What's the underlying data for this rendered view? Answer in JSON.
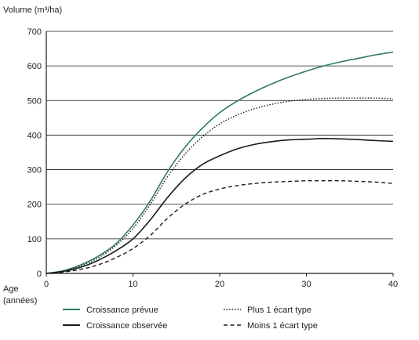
{
  "chart_data": {
    "type": "line",
    "ylabel": "Volume (m³/ha)",
    "xlabel": "Age",
    "xlabel_line2": "(années)",
    "xlim": [
      0,
      40
    ],
    "ylim": [
      0,
      700
    ],
    "xticks": [
      0,
      10,
      20,
      30,
      40
    ],
    "yticks": [
      0,
      100,
      200,
      300,
      400,
      500,
      600,
      700
    ],
    "grid": "horizontal",
    "legend_position": "bottom",
    "colors": {
      "teal": "#2e7a6c",
      "black": "#1a1a1a"
    },
    "series": [
      {
        "name": "Croissance prévue",
        "style": "solid",
        "color": "#2e7a6c",
        "x": [
          0,
          2,
          4,
          6,
          8,
          10,
          12,
          14,
          16,
          18,
          20,
          22,
          24,
          26,
          28,
          30,
          32,
          34,
          36,
          38,
          40
        ],
        "y": [
          0,
          8,
          25,
          50,
          85,
          140,
          210,
          295,
          365,
          420,
          465,
          498,
          525,
          548,
          568,
          585,
          600,
          612,
          622,
          632,
          640
        ]
      },
      {
        "name": "Croissance observée",
        "style": "solid",
        "color": "#1a1a1a",
        "x": [
          0,
          2,
          4,
          6,
          8,
          10,
          12,
          14,
          16,
          18,
          20,
          22,
          24,
          26,
          28,
          30,
          32,
          34,
          36,
          38,
          40
        ],
        "y": [
          0,
          6,
          18,
          38,
          65,
          100,
          155,
          220,
          275,
          315,
          340,
          360,
          373,
          381,
          386,
          388,
          390,
          389,
          387,
          384,
          382
        ]
      },
      {
        "name": "Plus 1 écart type",
        "style": "dotted",
        "color": "#1a1a1a",
        "x": [
          0,
          2,
          4,
          6,
          8,
          10,
          12,
          14,
          16,
          18,
          20,
          22,
          24,
          26,
          28,
          30,
          32,
          34,
          36,
          38,
          40
        ],
        "y": [
          0,
          7,
          22,
          45,
          80,
          130,
          200,
          280,
          345,
          395,
          432,
          458,
          476,
          489,
          498,
          503,
          506,
          507,
          507,
          507,
          505
        ]
      },
      {
        "name": "Moins 1 écart type",
        "style": "dashed",
        "color": "#1a1a1a",
        "x": [
          0,
          2,
          4,
          6,
          8,
          10,
          12,
          14,
          16,
          18,
          20,
          22,
          24,
          26,
          28,
          30,
          32,
          34,
          36,
          38,
          40
        ],
        "y": [
          0,
          4,
          12,
          25,
          45,
          72,
          110,
          160,
          200,
          228,
          244,
          254,
          260,
          264,
          266,
          268,
          268,
          268,
          266,
          264,
          260
        ]
      }
    ]
  }
}
